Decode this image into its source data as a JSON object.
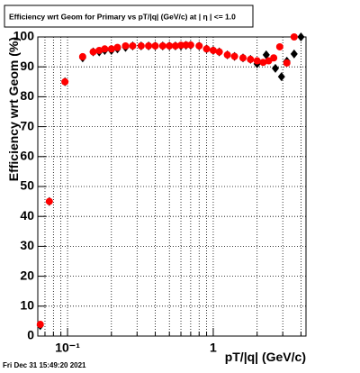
{
  "chart_data": {
    "type": "scatter",
    "title": "Efficiency wrt Geom for Primary vs pT/|q| (GeV/c) at |  η | <= 1.0",
    "x_label": "pT/|q| (GeV/c)",
    "y_label": "Efficiency wrt Geom (%)",
    "footer": "Fri Dec 31 15:49:20 2021",
    "log_x": true,
    "grid": true,
    "xlim": [
      0.0625,
      4.33
    ],
    "ylim": [
      0,
      100
    ],
    "xticks": [
      {
        "value": 0.1,
        "label": "10⁻¹"
      },
      1
    ],
    "xminor": [
      0.07,
      0.08,
      0.09,
      0.2,
      0.3,
      0.4,
      0.5,
      0.6,
      0.7,
      0.8,
      0.9,
      2,
      3,
      4
    ],
    "yticks": [
      0,
      10,
      20,
      30,
      40,
      50,
      60,
      70,
      80,
      90,
      100
    ],
    "series": [
      {
        "color": "#000000",
        "marker": "diamond",
        "x": [
          0.065,
          0.075,
          0.096,
          0.127,
          0.15,
          0.165,
          0.18,
          0.2,
          0.22,
          0.25,
          0.28,
          0.32,
          0.36,
          0.4,
          0.45,
          0.5,
          0.55,
          0.6,
          0.65,
          0.7,
          0.8,
          0.9,
          1.0,
          1.1,
          1.25,
          1.4,
          1.6,
          1.8,
          2.0,
          2.31,
          2.67,
          2.94,
          3.2,
          3.59,
          4.0
        ],
        "values": [
          3.5,
          45,
          85,
          93,
          95,
          95,
          95.5,
          95.5,
          96,
          96.5,
          97,
          97,
          97,
          97,
          97,
          97,
          97,
          97,
          97.2,
          97.2,
          97,
          96,
          95.5,
          95,
          94,
          93.5,
          93,
          92.5,
          91,
          94,
          89.5,
          86.7,
          91.9,
          94.3,
          100
        ]
      },
      {
        "color": "#ff0000",
        "marker": "circle",
        "x": [
          0.065,
          0.075,
          0.096,
          0.127,
          0.15,
          0.165,
          0.18,
          0.2,
          0.22,
          0.25,
          0.28,
          0.32,
          0.36,
          0.4,
          0.45,
          0.5,
          0.55,
          0.6,
          0.65,
          0.7,
          0.8,
          0.9,
          1.0,
          1.1,
          1.25,
          1.4,
          1.6,
          1.8,
          2.0,
          2.2,
          2.4,
          2.6,
          2.86,
          3.2,
          3.59
        ],
        "values": [
          3.9,
          45,
          85,
          93.4,
          95,
          95.5,
          96,
          96,
          96.5,
          97,
          97,
          97,
          97,
          97,
          97,
          97,
          97,
          97.2,
          97.3,
          97.3,
          97,
          96,
          95.5,
          95,
          94,
          93.5,
          93,
          92.5,
          92,
          91.5,
          92,
          93,
          96.7,
          91.3,
          100
        ]
      }
    ]
  }
}
